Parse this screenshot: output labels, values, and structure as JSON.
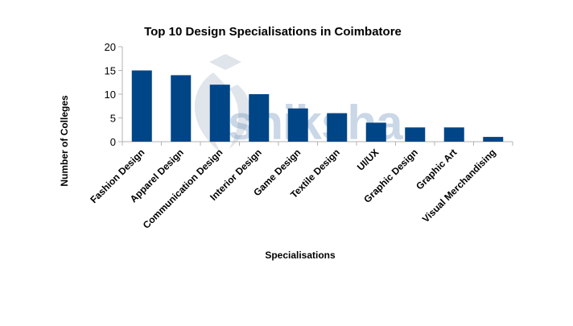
{
  "chart_data": {
    "type": "bar",
    "title": "Top 10 Design Specialisations in Coimbatore",
    "xlabel": "Specialisations",
    "ylabel": "Number of Colleges",
    "categories": [
      "Fashion Design",
      "Apparel Design",
      "Communication Design",
      "Interior Design",
      "Game Design",
      "Textile Design",
      "UI/UX",
      "Graphic Design",
      "Graphic Art",
      "Visual Merchandising"
    ],
    "values": [
      15,
      14,
      12,
      10,
      7,
      6,
      4,
      3,
      3,
      1
    ],
    "ylim": [
      0,
      20
    ],
    "yticks": [
      0,
      5,
      10,
      15,
      20
    ],
    "grid": false,
    "legend": null,
    "bar_color": "#004586",
    "x_tick_rotation": -45
  },
  "watermark": {
    "text": "shiksha",
    "icon": "shiksha-logo-icon"
  }
}
